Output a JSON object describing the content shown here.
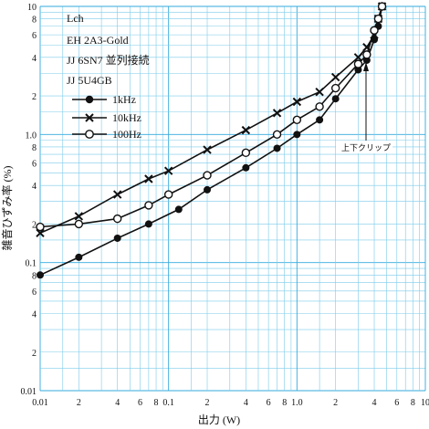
{
  "chart_data": {
    "type": "line",
    "xscale": "log",
    "yscale": "log",
    "xlim": [
      0.01,
      10
    ],
    "ylim": [
      0.01,
      10
    ],
    "grid": true,
    "grid_color": "#33aadd",
    "xlabel": "出力 (W)",
    "ylabel": "雑音ひずみ率 (%)",
    "x_ticks": [
      {
        "v": 0.01,
        "t": "0.01"
      },
      {
        "v": 0.02,
        "t": "2"
      },
      {
        "v": 0.04,
        "t": "4"
      },
      {
        "v": 0.06,
        "t": "6"
      },
      {
        "v": 0.08,
        "t": "8"
      },
      {
        "v": 0.1,
        "t": "0.1"
      },
      {
        "v": 0.2,
        "t": "2"
      },
      {
        "v": 0.4,
        "t": "4"
      },
      {
        "v": 0.6,
        "t": "6"
      },
      {
        "v": 0.8,
        "t": "8"
      },
      {
        "v": 1.0,
        "t": "1.0"
      },
      {
        "v": 2,
        "t": "2"
      },
      {
        "v": 4,
        "t": "4"
      },
      {
        "v": 6,
        "t": "6"
      },
      {
        "v": 8,
        "t": "8"
      },
      {
        "v": 10,
        "t": "10"
      }
    ],
    "y_ticks": [
      {
        "v": 0.01,
        "t": "0.01"
      },
      {
        "v": 0.02,
        "t": "2"
      },
      {
        "v": 0.04,
        "t": "4"
      },
      {
        "v": 0.06,
        "t": "6"
      },
      {
        "v": 0.08,
        "t": "8"
      },
      {
        "v": 0.1,
        "t": "0.1"
      },
      {
        "v": 0.2,
        "t": "2"
      },
      {
        "v": 0.4,
        "t": "4"
      },
      {
        "v": 0.6,
        "t": "6"
      },
      {
        "v": 0.8,
        "t": "8"
      },
      {
        "v": 1.0,
        "t": "1.0"
      },
      {
        "v": 2,
        "t": "2"
      },
      {
        "v": 4,
        "t": "4"
      },
      {
        "v": 6,
        "t": "6"
      },
      {
        "v": 8,
        "t": "8"
      },
      {
        "v": 10,
        "t": "10"
      }
    ],
    "info_lines": [
      "Lch",
      "EH 2A3-Gold",
      "JJ 6SN7 並列接続",
      "JJ 5U4GB"
    ],
    "legend_position": "upper-left",
    "annotation": {
      "text": "上下クリップ",
      "x": 3.5,
      "y": 4.2
    },
    "series": [
      {
        "name": "1kHz",
        "marker": "filled-circle",
        "x": [
          0.01,
          0.02,
          0.04,
          0.07,
          0.12,
          0.2,
          0.4,
          0.7,
          1.0,
          1.5,
          2.0,
          3.0,
          3.5,
          4.0,
          4.3,
          4.6
        ],
        "y": [
          0.08,
          0.11,
          0.155,
          0.2,
          0.26,
          0.37,
          0.55,
          0.78,
          1.0,
          1.3,
          1.9,
          3.2,
          3.8,
          5.5,
          7.0,
          10.0
        ]
      },
      {
        "name": "10kHz",
        "marker": "cross",
        "x": [
          0.01,
          0.02,
          0.04,
          0.07,
          0.1,
          0.2,
          0.4,
          0.7,
          1.0,
          1.5,
          2.0,
          3.0,
          3.5,
          4.0,
          4.3,
          4.6
        ],
        "y": [
          0.17,
          0.23,
          0.34,
          0.45,
          0.52,
          0.76,
          1.08,
          1.47,
          1.8,
          2.15,
          2.8,
          4.0,
          4.8,
          6.0,
          8.0,
          10.0
        ]
      },
      {
        "name": "100Hz",
        "marker": "open-circle",
        "x": [
          0.01,
          0.02,
          0.04,
          0.07,
          0.1,
          0.2,
          0.4,
          0.7,
          1.0,
          1.5,
          2.0,
          3.0,
          3.5,
          4.0,
          4.3,
          4.6
        ],
        "y": [
          0.19,
          0.2,
          0.22,
          0.28,
          0.34,
          0.48,
          0.72,
          1.0,
          1.3,
          1.65,
          2.3,
          3.55,
          4.2,
          6.5,
          8.0,
          10.0
        ]
      }
    ]
  }
}
